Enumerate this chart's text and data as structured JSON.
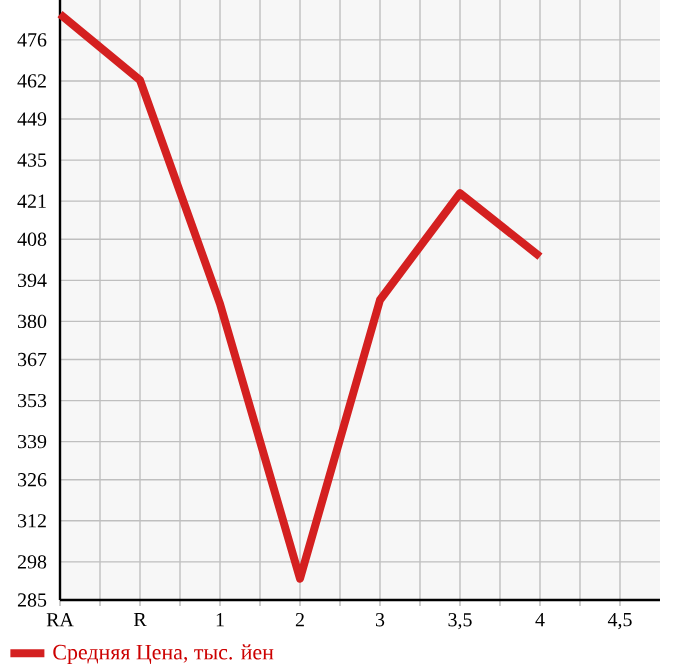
{
  "chart_data": {
    "type": "line",
    "categories": [
      "RA",
      "R",
      "1",
      "2",
      "3",
      "3,5",
      "4",
      "4,5"
    ],
    "series": [
      {
        "name": "Средняя Цена, тыс. йен",
        "color": "#d42020",
        "values": [
          484.8,
          462.3,
          386,
          292.3,
          387.3,
          423.7,
          402.1,
          null
        ]
      }
    ],
    "ylim": [
      285,
      489.6
    ],
    "yticks": [
      285,
      298,
      312,
      326,
      339,
      353,
      367,
      380,
      394,
      408,
      421,
      435,
      449,
      462,
      476
    ],
    "grid": true,
    "legend": "bottom left",
    "marker": "none",
    "line_style": "solid"
  }
}
